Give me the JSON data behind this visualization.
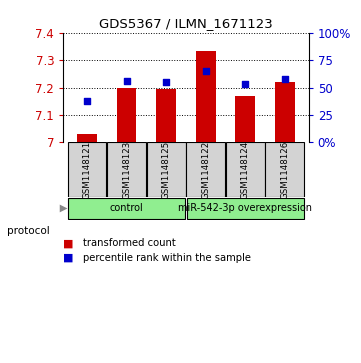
{
  "title": "GDS5367 / ILMN_1671123",
  "samples": [
    "GSM1148121",
    "GSM1148123",
    "GSM1148125",
    "GSM1148122",
    "GSM1148124",
    "GSM1148126"
  ],
  "bar_values": [
    7.03,
    7.2,
    7.195,
    7.335,
    7.17,
    7.22
  ],
  "percentile_values": [
    7.15,
    7.225,
    7.222,
    7.262,
    7.212,
    7.232
  ],
  "bar_color": "#cc0000",
  "dot_color": "#0000cc",
  "ylim": [
    7.0,
    7.4
  ],
  "yticks": [
    7.0,
    7.1,
    7.2,
    7.3,
    7.4
  ],
  "ytick_labels_left": [
    "7",
    "7.1",
    "7.2",
    "7.3",
    "7.4"
  ],
  "right_axis_ticks": [
    0,
    25,
    50,
    75,
    100
  ],
  "legend_bar_label": "transformed count",
  "legend_dot_label": "percentile rank within the sample",
  "bar_width": 0.5,
  "background_color": "#ffffff",
  "sample_box_color": "#d3d3d3",
  "group_box_color": "#90ee90",
  "group1_label": "control",
  "group2_label": "miR-542-3p overexpression",
  "protocol_label": "protocol"
}
